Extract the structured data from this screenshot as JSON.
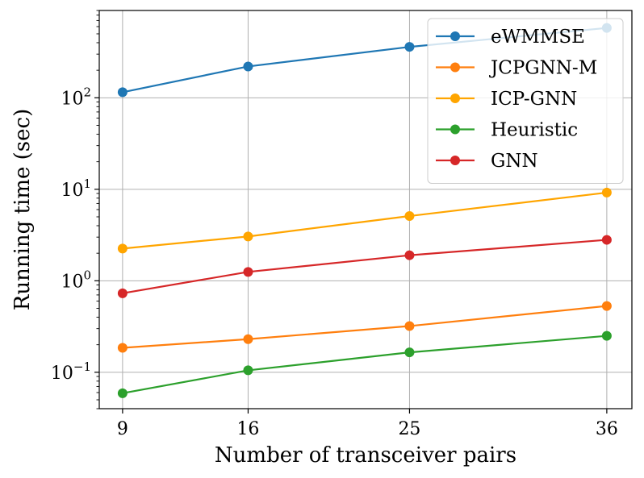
{
  "chart_data": {
    "type": "line",
    "xlabel": "Number of transceiver pairs",
    "ylabel": "Running time (sec)",
    "x": [
      9,
      16,
      25,
      36
    ],
    "x_ticks": [
      9,
      16,
      25,
      36
    ],
    "y_scale": "log",
    "ylim": [
      0.04,
      900
    ],
    "y_ticks": [
      {
        "value": 0.1,
        "base": "10",
        "exp": "−1"
      },
      {
        "value": 1,
        "base": "10",
        "exp": "0"
      },
      {
        "value": 10,
        "base": "10",
        "exp": "1"
      },
      {
        "value": 100,
        "base": "10",
        "exp": "2"
      }
    ],
    "grid": true,
    "legend_position": "top-right",
    "series": [
      {
        "name": "eWMMSE",
        "color": "#1f77b4",
        "values": [
          115,
          220,
          360,
          580
        ]
      },
      {
        "name": "JCPGNN-M",
        "color": "#ff7f0e",
        "values": [
          0.185,
          0.23,
          0.32,
          0.53
        ]
      },
      {
        "name": "ICP-GNN",
        "color": "#ffa500",
        "values": [
          2.25,
          3.05,
          5.1,
          9.2
        ]
      },
      {
        "name": "Heuristic",
        "color": "#2ca02c",
        "values": [
          0.059,
          0.105,
          0.165,
          0.25
        ]
      },
      {
        "name": "GNN",
        "color": "#d62728",
        "values": [
          0.73,
          1.25,
          1.9,
          2.8
        ]
      }
    ]
  }
}
